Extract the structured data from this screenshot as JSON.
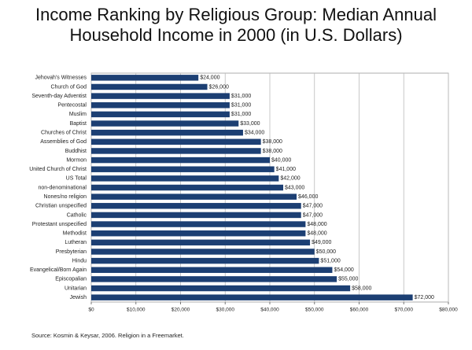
{
  "chart_data": {
    "type": "hbar",
    "title": "Income Ranking by Religious Group: Median Annual Household Income in 2000 (in U.S. Dollars)",
    "categories": [
      "Jehovah's Witnesses",
      "Church of God",
      "Seventh-day Adventist",
      "Pentecostal",
      "Muslim",
      "Baptist",
      "Churches of Christ",
      "Assemblies of God",
      "Buddhist",
      "Mormon",
      "United Church of Christ",
      "US Total",
      "non-denominational",
      "Nones/no religion",
      "Christian unspecified",
      "Catholic",
      "Protestant unspecified",
      "Methodist",
      "Lutheran",
      "Presbyterian",
      "Hindu",
      "Evangelical/Born Again",
      "Episcopalian",
      "Unitarian",
      "Jewish"
    ],
    "values": [
      24000,
      26000,
      31000,
      31000,
      31000,
      33000,
      34000,
      38000,
      38000,
      40000,
      41000,
      42000,
      43000,
      46000,
      47000,
      47000,
      48000,
      48000,
      49000,
      50000,
      51000,
      54000,
      55000,
      58000,
      72000
    ],
    "value_labels": [
      "$24,000",
      "$26,000",
      "$31,000",
      "$31,000",
      "$31,000",
      "$33,000",
      "$34,000",
      "$38,000",
      "$38,000",
      "$40,000",
      "$41,000",
      "$42,000",
      "$43,000",
      "$46,000",
      "$47,000",
      "$47,000",
      "$48,000",
      "$48,000",
      "$49,000",
      "$50,000",
      "$51,000",
      "$54,000",
      "$55,000",
      "$58,000",
      "$72,000"
    ],
    "color": "#1c3f73",
    "xlim": [
      0,
      80000
    ],
    "xticks": [
      {
        "value": 0,
        "label": "$0"
      },
      {
        "value": 10000,
        "label": "$10,000"
      },
      {
        "value": 20000,
        "label": "$20,000"
      },
      {
        "value": 30000,
        "label": "$30,000"
      },
      {
        "value": 40000,
        "label": "$40,000"
      },
      {
        "value": 50000,
        "label": "$50,000"
      },
      {
        "value": 60000,
        "label": "$60,000"
      },
      {
        "value": 70000,
        "label": "$70,000"
      },
      {
        "value": 80000,
        "label": "$80,000"
      }
    ],
    "grid": true,
    "source": "Source: Kosmin & Keysar, 2006. Religion in a Freemarket."
  }
}
